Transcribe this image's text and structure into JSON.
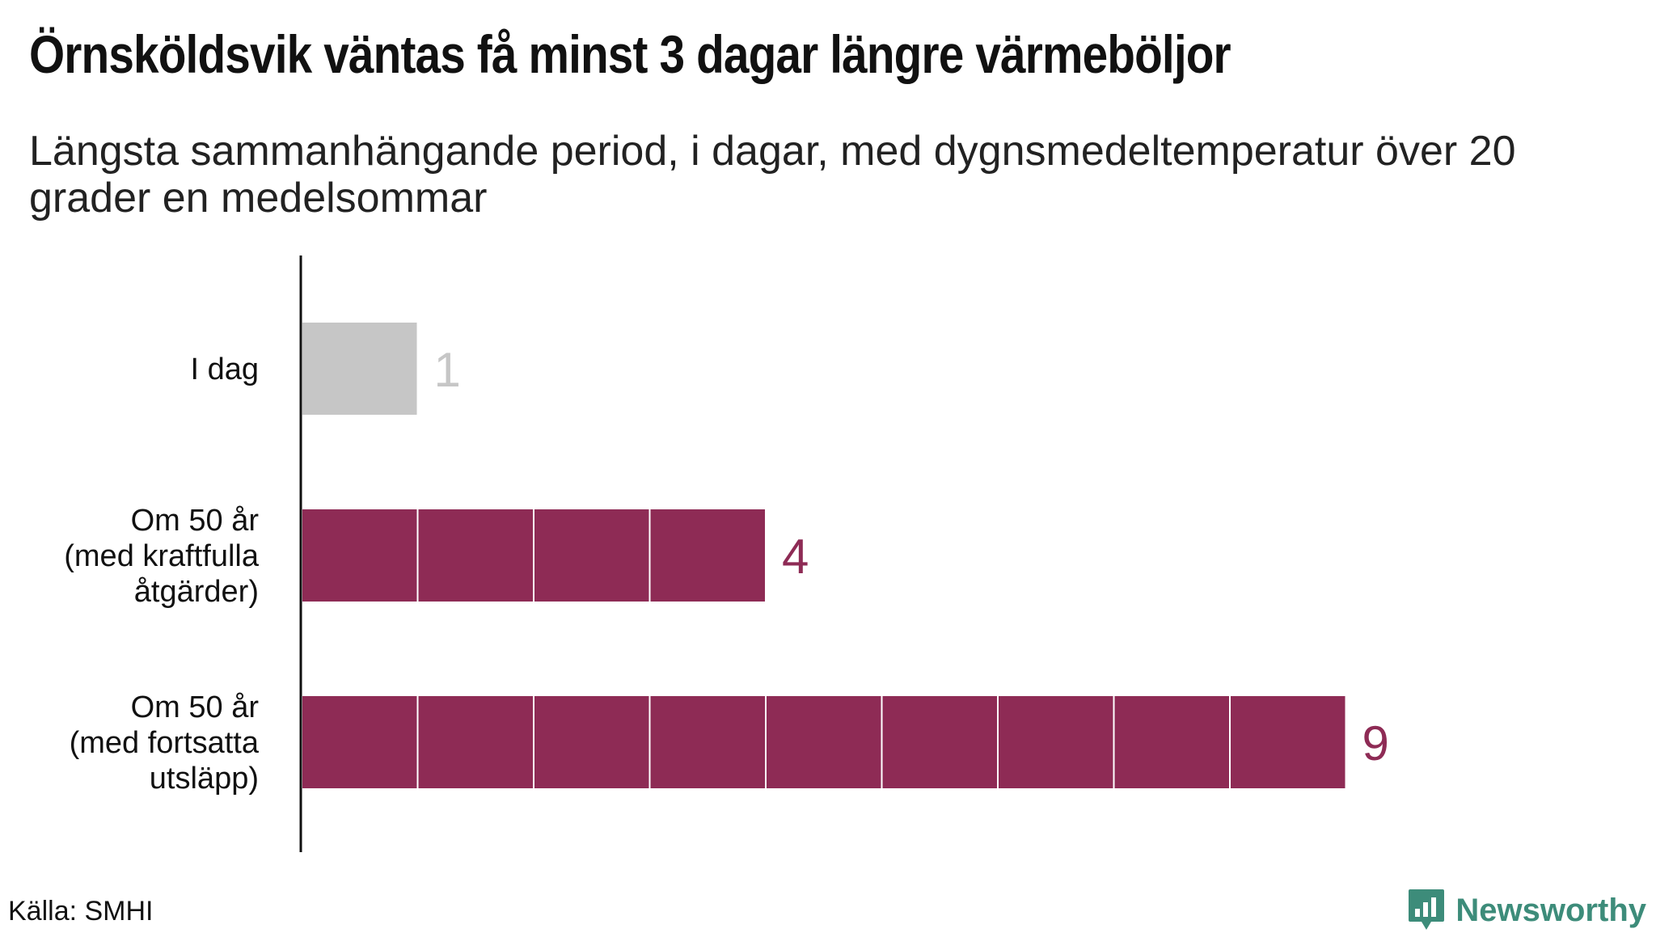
{
  "chart_data": {
    "type": "bar",
    "orientation": "horizontal",
    "title": "Örnsköldsvik väntas få minst 3 dagar längre värmeböljor",
    "subtitle": "Längsta sammanhängande period, i dagar, med dygnsmedeltemperatur över 20 grader en medelsommar",
    "categories": [
      [
        "I dag"
      ],
      [
        "Om 50 år",
        "(med kraftfulla",
        "åtgärder)"
      ],
      [
        "Om 50 år",
        "(med fortsatta",
        "utsläpp)"
      ]
    ],
    "values": [
      1,
      4,
      9
    ],
    "value_labels": [
      "1",
      "4",
      "9"
    ],
    "colors": [
      "#c6c6c6",
      "#8e2b55",
      "#8e2b55"
    ],
    "value_label_colors": [
      "#c6c6c6",
      "#8e2b55",
      "#8e2b55"
    ],
    "xlim": [
      0,
      9
    ],
    "segmented_by_unit": true,
    "grid": false
  },
  "footer": {
    "source": "Källa: SMHI",
    "brand": "Newsworthy",
    "brand_color": "#3d8c7a",
    "brand_icon": "newsworthy-logo-icon"
  }
}
